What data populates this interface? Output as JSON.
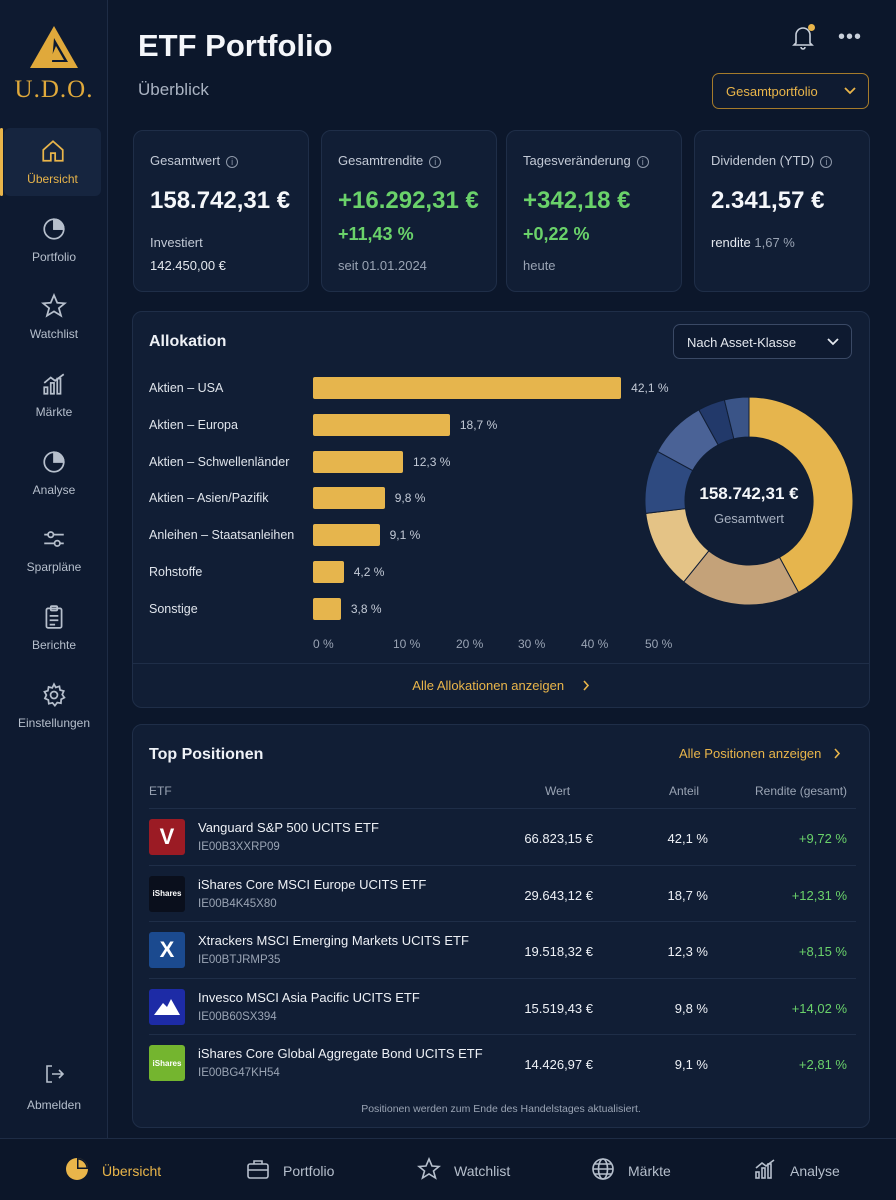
{
  "brand": {
    "name": "U.D.O.",
    "accent": "#e9b54a"
  },
  "header": {
    "title": "ETF Portfolio",
    "subtitle": "Überblick",
    "portfolio_select": "Gesamtportfolio"
  },
  "sidebar": {
    "items": [
      {
        "label": "Übersicht",
        "icon": "home-icon",
        "active": true
      },
      {
        "label": "Portfolio",
        "icon": "pie-chart-icon"
      },
      {
        "label": "Watchlist",
        "icon": "star-icon"
      },
      {
        "label": "Märkte",
        "icon": "bar-chart-icon"
      },
      {
        "label": "Analyse",
        "icon": "pie-chart-icon"
      },
      {
        "label": "Sparpläne",
        "icon": "sliders-icon"
      },
      {
        "label": "Berichte",
        "icon": "clipboard-icon"
      },
      {
        "label": "Einstellungen",
        "icon": "gear-icon"
      }
    ],
    "logout": "Abmelden"
  },
  "kpis": {
    "gesamtwert": {
      "label": "Gesamtwert",
      "value": "158.742,31 €",
      "sub_label": "Investiert",
      "sub_value": "142.450,00 €"
    },
    "gesamtrendite": {
      "label": "Gesamtrendite",
      "value": "+16.292,31 €",
      "pct": "+11,43 %",
      "sub": "seit 01.01.2024"
    },
    "tages": {
      "label": "Tagesveränderung",
      "value": "+342,18 €",
      "pct": "+0,22 %",
      "sub": "heute"
    },
    "dividenden": {
      "label": "Dividenden (YTD)",
      "value": "2.341,57 €",
      "sub_label": "rendite",
      "sub_value": "1,67 %"
    }
  },
  "allocation": {
    "title": "Allokation",
    "select": "Nach Asset-Klasse",
    "link": "Alle Allokationen anzeigen",
    "center_value": "158.742,31 €",
    "center_label": "Gesamtwert"
  },
  "chart_data": {
    "type": "bar",
    "orientation": "horizontal",
    "categories": [
      "Aktien – USA",
      "Aktien – Europa",
      "Aktien – Schwellenländer",
      "Aktien – Asien/Pazifik",
      "Anleihen – Staatsanleihen",
      "Rohstoffe",
      "Sonstige"
    ],
    "values": [
      42.1,
      18.7,
      12.3,
      9.8,
      9.1,
      4.2,
      3.8
    ],
    "value_labels": [
      "42,1 %",
      "18,7 %",
      "12,3 %",
      "9,8 %",
      "9,1 %",
      "4,2 %",
      "3,8 %"
    ],
    "xlim": [
      0,
      50
    ],
    "xticks": [
      "0 %",
      "10 %",
      "20 %",
      "30 %",
      "40 %",
      "50 %"
    ],
    "grid": false,
    "bar_color": "#e6b54d",
    "donut": {
      "type": "pie",
      "values": [
        42.1,
        18.7,
        12.3,
        9.8,
        9.1,
        4.2,
        3.8
      ],
      "colors": [
        "#e6b54d",
        "#c4a279",
        "#e4c386",
        "#2e4a80",
        "#4a6296",
        "#22396a",
        "#3a5487"
      ]
    }
  },
  "positions": {
    "title": "Top Positionen",
    "link": "Alle Positionen anzeigen",
    "headers": {
      "etf": "ETF",
      "wert": "Wert",
      "anteil": "Anteil",
      "rendite": "Rendite (gesamt)"
    },
    "rows": [
      {
        "name": "Vanguard S&P 500 UCITS ETF",
        "isin": "IE00B3XXRP09",
        "wert": "66.823,15 €",
        "anteil": "42,1 %",
        "rendite": "+9,72 %",
        "logo_text": "V",
        "logo_bg": "#9b1b24"
      },
      {
        "name": "iShares Core MSCI Europe UCITS ETF",
        "isin": "IE00B4K45X80",
        "wert": "29.643,12 €",
        "anteil": "18,7 %",
        "rendite": "+12,31 %",
        "logo_text": "iShares",
        "logo_bg": "#0a0f1c"
      },
      {
        "name": "Xtrackers MSCI Emerging Markets UCITS ETF",
        "isin": "IE00BTJRMP35",
        "wert": "19.518,32 €",
        "anteil": "12,3 %",
        "rendite": "+8,15 %",
        "logo_text": "X",
        "logo_bg": "#1b4a8f"
      },
      {
        "name": "Invesco MSCI Asia Pacific UCITS ETF",
        "isin": "IE00B60SX394",
        "wert": "15.519,43 €",
        "anteil": "9,8 %",
        "rendite": "+14,02 %",
        "logo_text": "",
        "logo_bg": "#1d2ba6"
      },
      {
        "name": "iShares Core Global Aggregate Bond UCITS ETF",
        "isin": "IE00BG47KH54",
        "wert": "14.426,97 €",
        "anteil": "9,1 %",
        "rendite": "+2,81 %",
        "logo_text": "iShares",
        "logo_bg": "#74b52f"
      }
    ],
    "note": "Positionen werden zum Ende des Handelstages aktualisiert."
  },
  "bottom_tabs": [
    {
      "label": "Übersicht",
      "icon": "pie-chart-icon",
      "active": true
    },
    {
      "label": "Portfolio",
      "icon": "briefcase-icon"
    },
    {
      "label": "Watchlist",
      "icon": "star-icon"
    },
    {
      "label": "Märkte",
      "icon": "globe-icon"
    },
    {
      "label": "Analyse",
      "icon": "bar-chart-icon"
    }
  ]
}
